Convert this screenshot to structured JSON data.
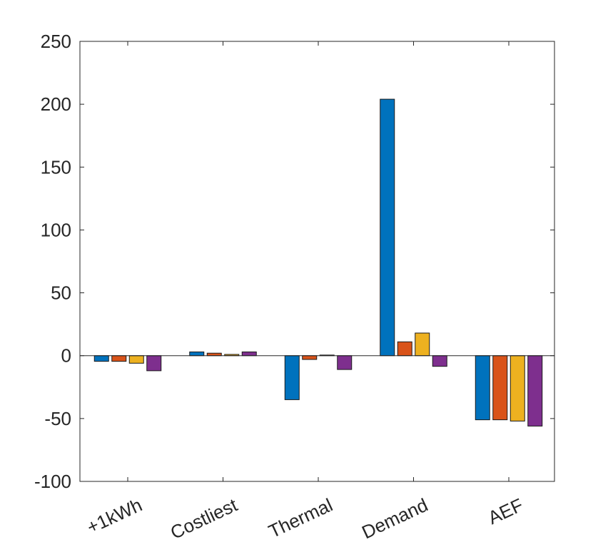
{
  "chart_data": {
    "type": "bar",
    "categories": [
      "+1kWh",
      "Costliest",
      "Thermal",
      "Demand",
      "AEF"
    ],
    "series": [
      {
        "color": "#0072BD",
        "values": [
          -4.5,
          3.0,
          -35,
          204,
          -51
        ]
      },
      {
        "color": "#D95319",
        "values": [
          -4.5,
          2.0,
          -3.0,
          11,
          -51
        ]
      },
      {
        "color": "#EDB120",
        "values": [
          -6.0,
          1.0,
          0.5,
          18,
          -52
        ]
      },
      {
        "color": "#7E2F8E",
        "values": [
          -12,
          3.0,
          -11,
          -8.5,
          -56
        ]
      }
    ],
    "y_ticks": [
      "-100",
      "-50",
      "0",
      "50",
      "100",
      "150",
      "200",
      "250"
    ],
    "ylim": [
      -100,
      250
    ],
    "title": "",
    "xlabel": "",
    "ylabel": "",
    "grid": false,
    "legend": "none"
  }
}
